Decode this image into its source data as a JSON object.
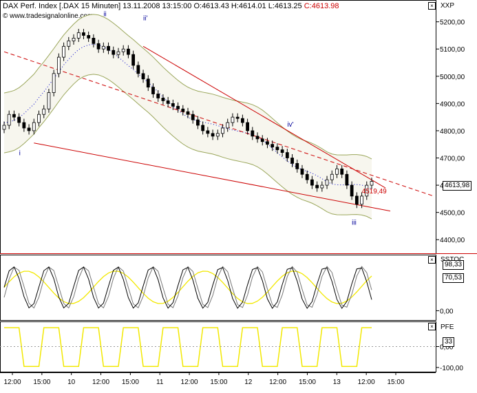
{
  "header": {
    "title": "DAX Perf. Index [.DAX  15 Minuten]",
    "datetime": "13.11.2008 13:15:00",
    "open": "O:4613.43",
    "high": "H:4614.01",
    "low": "L:4613.25",
    "close": "C:4613.98",
    "watermark": "© www.tradesignalonline.com"
  },
  "panels": {
    "price": {
      "label": "XXP",
      "last_value": "4613,98"
    },
    "stoch": {
      "label": "SSTOC",
      "values": [
        "98,33",
        "70,53"
      ]
    },
    "pfe": {
      "label": "PFE",
      "value": "33"
    }
  },
  "chart_data": [
    {
      "type": "candlestick",
      "ylim": [
        4350,
        5280
      ],
      "ytick_labels": [
        "4400,00",
        "4500,00",
        "4600,00",
        "4700,00",
        "4800,00",
        "4900,00",
        "5000,00",
        "5100,00",
        "5200,00"
      ],
      "ytick_values": [
        4400,
        4500,
        4600,
        4700,
        4800,
        4900,
        5000,
        5100,
        5200
      ],
      "xtick_labels": [
        "12:00",
        "15:00",
        "10",
        "12:00",
        "15:00",
        "11",
        "12:00",
        "15:00",
        "12",
        "12:00",
        "15:00",
        "13",
        "12:00",
        "15:00"
      ],
      "annotations": [
        {
          "text": "i",
          "x_index": 3,
          "y": 4710
        },
        {
          "text": "ii",
          "x_index": 20,
          "y": 5220
        },
        {
          "text": "ii'",
          "x_index": 28,
          "y": 5205
        },
        {
          "text": "iv'",
          "x_index": 57,
          "y": 4815
        },
        {
          "text": "iii",
          "x_index": 70,
          "y": 4455
        },
        {
          "text": "4519,49",
          "x_index": 72,
          "y": 4570
        }
      ],
      "close_series": [
        4820,
        4860,
        4850,
        4830,
        4810,
        4800,
        4830,
        4860,
        4880,
        4940,
        5010,
        5070,
        5110,
        5130,
        5140,
        5160,
        5150,
        5140,
        5120,
        5100,
        5110,
        5095,
        5080,
        5090,
        5100,
        5080,
        5040,
        5010,
        4990,
        4960,
        4935,
        4920,
        4910,
        4900,
        4890,
        4880,
        4870,
        4860,
        4840,
        4820,
        4800,
        4790,
        4780,
        4790,
        4810,
        4830,
        4850,
        4845,
        4830,
        4800,
        4780,
        4770,
        4760,
        4750,
        4740,
        4730,
        4720,
        4700,
        4680,
        4660,
        4640,
        4620,
        4600,
        4590,
        4600,
        4620,
        4640,
        4660,
        4640,
        4600,
        4560,
        4530,
        4560,
        4600,
        4613.98
      ],
      "series": [
        {
          "name": "SSTOC",
          "ylim": [
            -20,
            120
          ],
          "ytick_labels": [
            "0,00"
          ]
        },
        {
          "name": "PFE",
          "ylim": [
            -120,
            120
          ],
          "ytick_labels": [
            "0,00",
            "-100,00"
          ]
        }
      ]
    }
  ],
  "colors": {
    "candle_up": "#ffffff",
    "candle_down": "#000000",
    "trend_red": "#cc0000",
    "band": "#9aa65a",
    "band_fill": "#f7f6ee",
    "dotted_ma": "#0000cc",
    "stoch_yellow": "#f2e800",
    "pfe_yellow": "#f2e800",
    "axis": "#000000",
    "annotation_blue": "#000099"
  }
}
